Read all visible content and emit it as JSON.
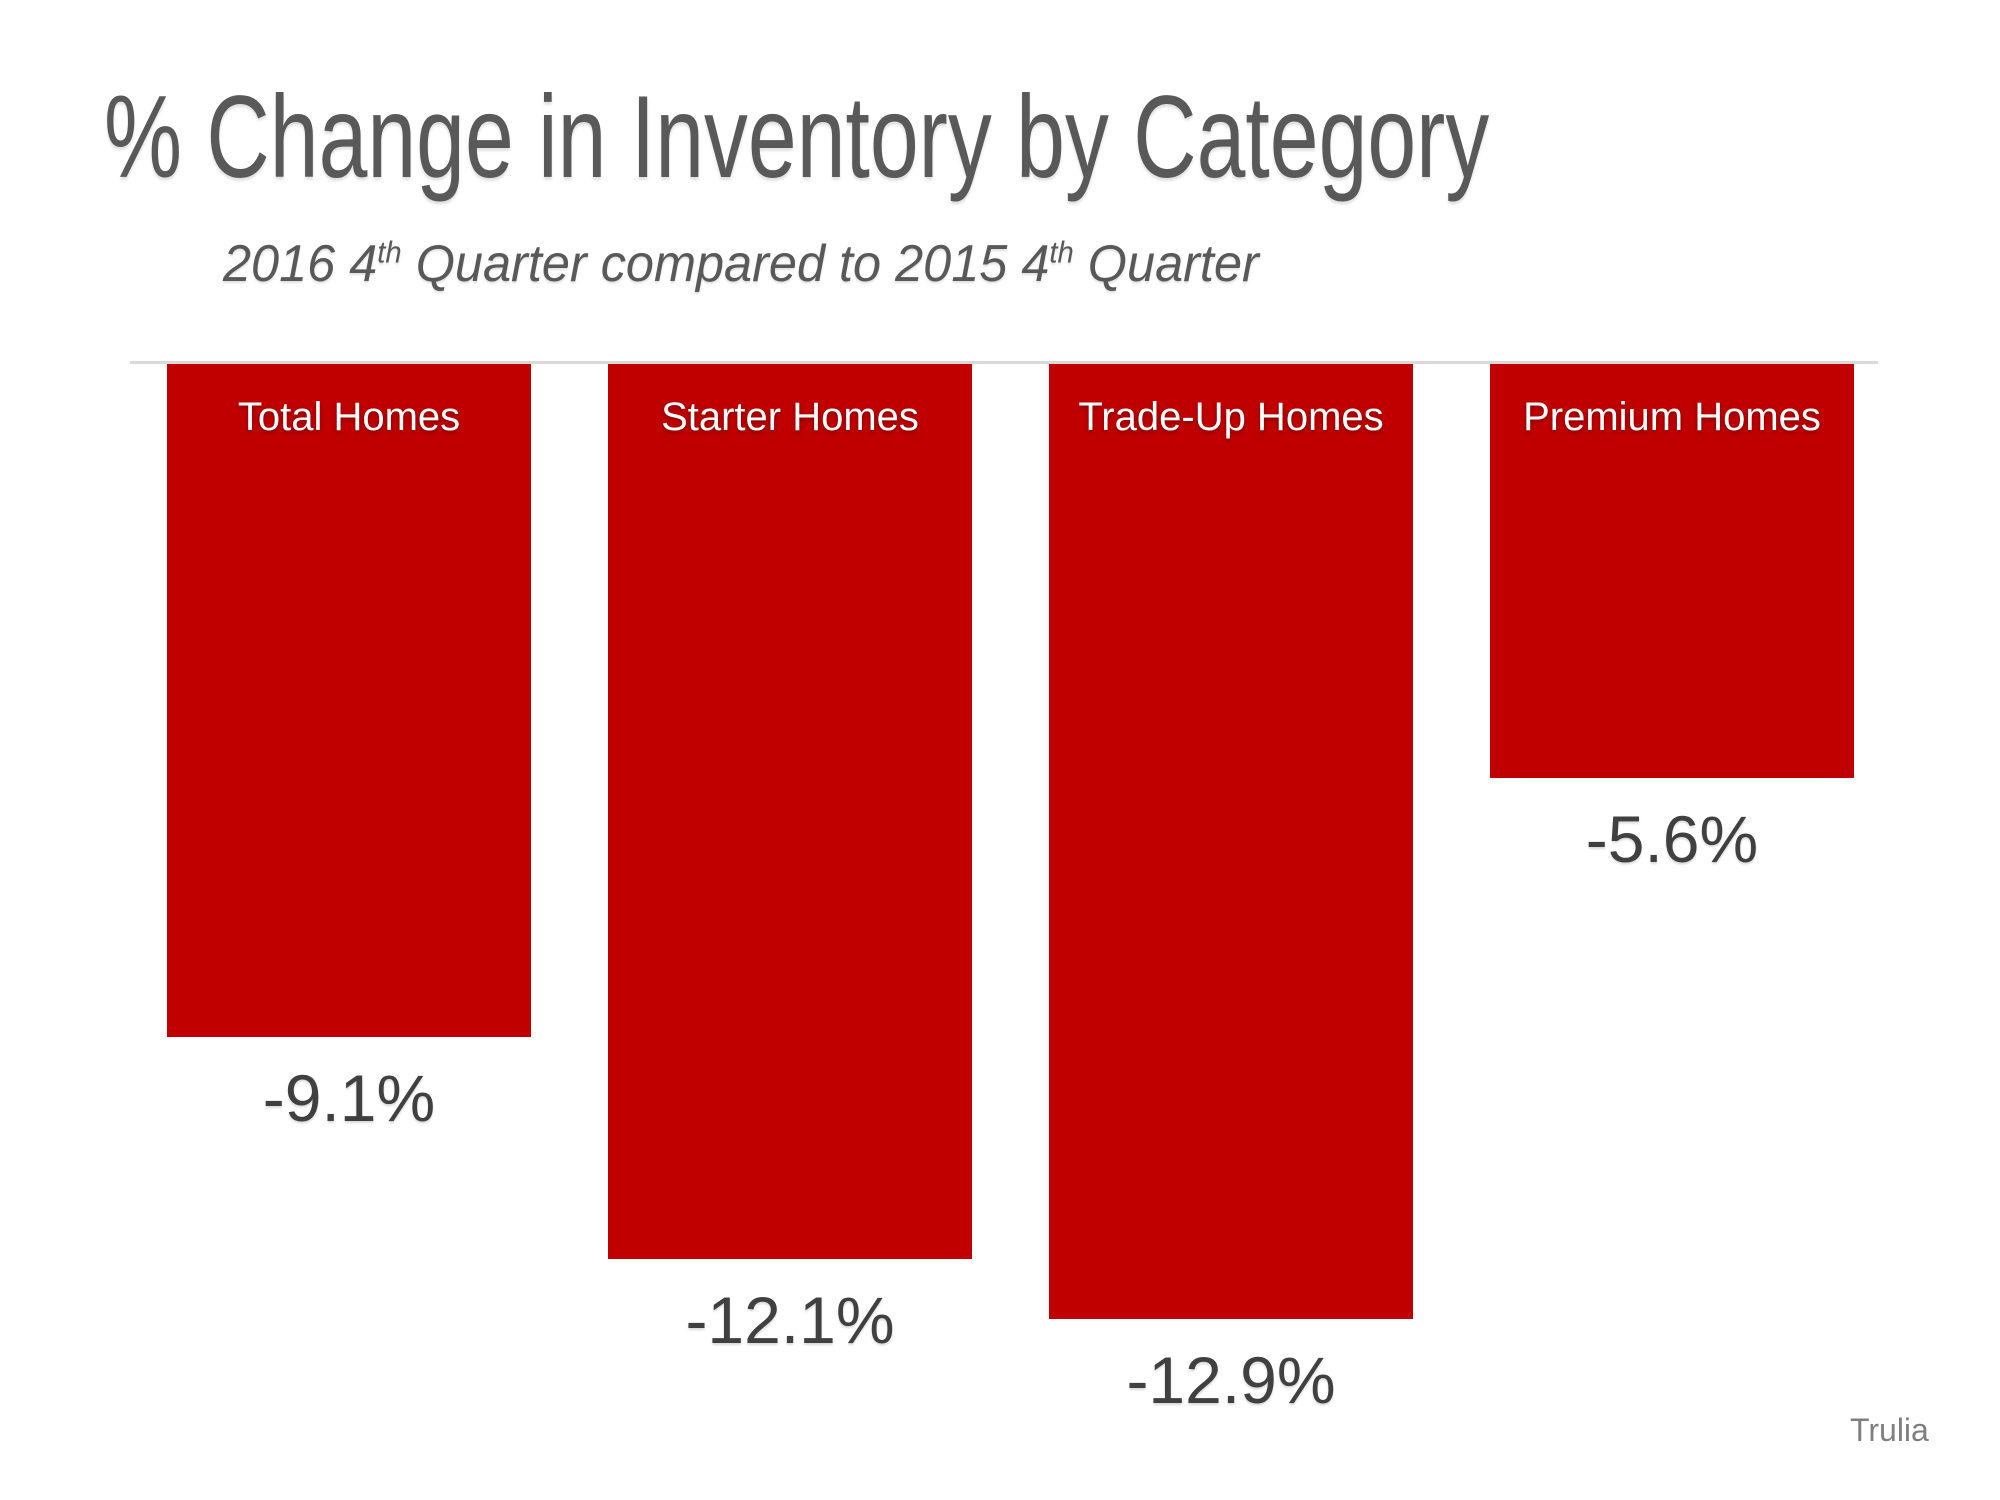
{
  "header": {
    "title": "% Change in Inventory by Category",
    "subtitle_parts": {
      "p1": "2016 4",
      "sup1": "th",
      "p2": " Quarter compared to 2015 4",
      "sup2": "th",
      "p3": " Quarter"
    }
  },
  "chart_data": {
    "type": "bar",
    "title": "% Change in Inventory by Category",
    "subtitle": "2016 4th Quarter compared to 2015 4th Quarter",
    "categories": [
      "Total Homes",
      "Starter Homes",
      "Trade-Up Homes",
      "Premium Homes"
    ],
    "values": [
      -9.1,
      -12.1,
      -12.9,
      -5.6
    ],
    "value_labels": [
      "-9.1%",
      "-12.1%",
      "-12.9%",
      "-5.6%"
    ],
    "unit": "percent",
    "orientation": "vertical",
    "bars_extend": "downward-from-zero-baseline",
    "ylim": [
      -13.5,
      0
    ],
    "grid": false,
    "legend": "none",
    "bar_color": "#C00000",
    "category_label_color": "#ffffff",
    "value_label_color": "#404040",
    "baseline_color": "#d9d9d9",
    "title_color": "#595959"
  },
  "source": {
    "credit": "Trulia"
  }
}
